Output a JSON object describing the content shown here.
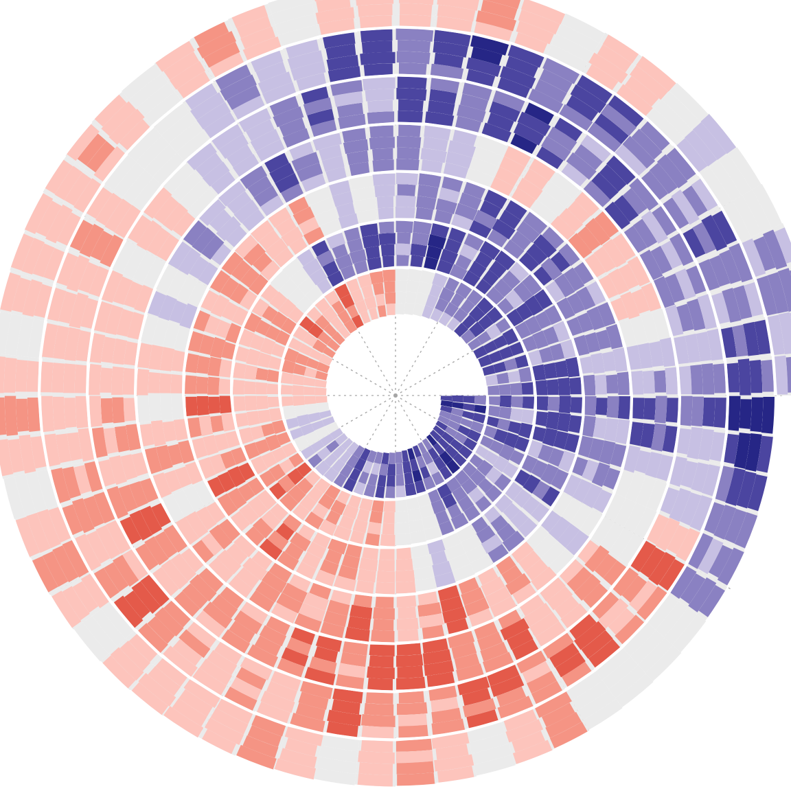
{
  "chart_data": {
    "type": "heatmap",
    "layout": "spiral",
    "title": "",
    "xlabel": "",
    "ylabel": "",
    "start_direction": "east",
    "rotation": "clockwise",
    "turns": 7,
    "segments_per_turn": 60,
    "value_levels": [
      -4,
      -3,
      -2,
      -1,
      0,
      1,
      2,
      3,
      4
    ],
    "level_colors": {
      "-4": "#262686",
      "-3": "#4b45a0",
      "-2": "#8a81c2",
      "-1": "#c7c0e3",
      "0": "#ebebeb",
      "1": "#fdc4bc",
      "2": "#f59484",
      "3": "#e45a4a",
      "4": "#c8201e"
    },
    "grid": true,
    "grid_spokes": 12,
    "legend": "none",
    "turn_profiles": [
      {
        "turn": 1,
        "anchors": [
          -3,
          -3,
          -3,
          -3,
          -2,
          -1,
          1,
          2,
          2,
          1,
          -2,
          -3,
          -3
        ]
      },
      {
        "turn": 2,
        "anchors": [
          -3,
          -2,
          -2,
          1,
          2,
          2,
          1,
          2,
          -2,
          -3,
          -3,
          -2,
          -3
        ]
      },
      {
        "turn": 3,
        "anchors": [
          -3,
          -2,
          -1,
          1,
          2,
          2,
          2,
          2,
          1,
          -2,
          -3,
          -2,
          -2
        ]
      },
      {
        "turn": 4,
        "anchors": [
          -3,
          -1,
          2,
          2,
          2,
          1,
          1,
          -1,
          -2,
          -2,
          1,
          1,
          -2
        ]
      },
      {
        "turn": 5,
        "anchors": [
          -3,
          1,
          2,
          3,
          2,
          2,
          1,
          1,
          -2,
          -3,
          -3,
          -2,
          -2
        ]
      },
      {
        "turn": 6,
        "anchors": [
          -3,
          2,
          3,
          2,
          2,
          2,
          1,
          1,
          -1,
          -3,
          -3,
          -2,
          -3
        ]
      },
      {
        "turn": 7,
        "anchors": [
          -4,
          -1,
          1,
          1,
          1,
          1,
          1,
          1,
          1,
          1,
          1,
          -1,
          -2
        ]
      }
    ]
  }
}
